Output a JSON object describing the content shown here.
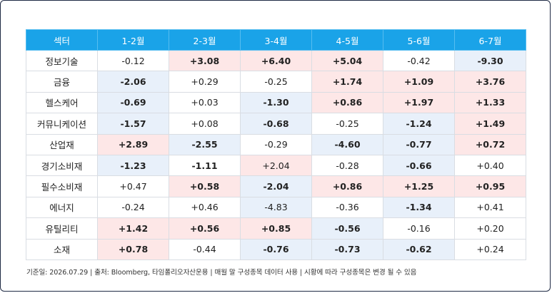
{
  "table": {
    "header": [
      "섹터",
      "1-2월",
      "2-3월",
      "3-4월",
      "4-5월",
      "5-6월",
      "6-7월"
    ],
    "rows": [
      {
        "sector": "정보기술",
        "cells": [
          {
            "v": "-0.12",
            "bold": false,
            "tone": "none"
          },
          {
            "v": "+3.08",
            "bold": true,
            "tone": "pos"
          },
          {
            "v": "+6.40",
            "bold": true,
            "tone": "pos"
          },
          {
            "v": "+5.04",
            "bold": true,
            "tone": "pos"
          },
          {
            "v": "-0.42",
            "bold": false,
            "tone": "none"
          },
          {
            "v": "-9.30",
            "bold": true,
            "tone": "neg"
          }
        ]
      },
      {
        "sector": "금융",
        "cells": [
          {
            "v": "-2.06",
            "bold": true,
            "tone": "neg"
          },
          {
            "v": "+0.29",
            "bold": false,
            "tone": "none"
          },
          {
            "v": "-0.25",
            "bold": false,
            "tone": "none"
          },
          {
            "v": "+1.74",
            "bold": true,
            "tone": "pos"
          },
          {
            "v": "+1.09",
            "bold": true,
            "tone": "pos"
          },
          {
            "v": "+3.76",
            "bold": true,
            "tone": "pos"
          }
        ]
      },
      {
        "sector": "헬스케어",
        "cells": [
          {
            "v": "-0.69",
            "bold": true,
            "tone": "neg"
          },
          {
            "v": "+0.03",
            "bold": false,
            "tone": "none"
          },
          {
            "v": "-1.30",
            "bold": true,
            "tone": "neg"
          },
          {
            "v": "+0.86",
            "bold": true,
            "tone": "pos"
          },
          {
            "v": "+1.97",
            "bold": true,
            "tone": "pos"
          },
          {
            "v": "+1.33",
            "bold": true,
            "tone": "pos"
          }
        ]
      },
      {
        "sector": "커뮤니케이션",
        "cells": [
          {
            "v": "-1.57",
            "bold": true,
            "tone": "neg"
          },
          {
            "v": "+0.08",
            "bold": false,
            "tone": "none"
          },
          {
            "v": "-0.68",
            "bold": true,
            "tone": "neg"
          },
          {
            "v": "-0.25",
            "bold": false,
            "tone": "none"
          },
          {
            "v": "-1.24",
            "bold": true,
            "tone": "neg"
          },
          {
            "v": "+1.49",
            "bold": true,
            "tone": "pos"
          }
        ]
      },
      {
        "sector": "산업재",
        "cells": [
          {
            "v": "+2.89",
            "bold": true,
            "tone": "pos"
          },
          {
            "v": "-2.55",
            "bold": true,
            "tone": "neg"
          },
          {
            "v": "-0.29",
            "bold": false,
            "tone": "none"
          },
          {
            "v": "-4.60",
            "bold": true,
            "tone": "neg"
          },
          {
            "v": "-0.77",
            "bold": true,
            "tone": "neg"
          },
          {
            "v": "+0.72",
            "bold": true,
            "tone": "pos"
          }
        ]
      },
      {
        "sector": "경기소비재",
        "cells": [
          {
            "v": "-1.23",
            "bold": true,
            "tone": "neg"
          },
          {
            "v": "-1.11",
            "bold": true,
            "tone": "none"
          },
          {
            "v": "+2.04",
            "bold": false,
            "tone": "pos"
          },
          {
            "v": "-0.28",
            "bold": false,
            "tone": "none"
          },
          {
            "v": "-0.66",
            "bold": true,
            "tone": "neg"
          },
          {
            "v": "+0.40",
            "bold": false,
            "tone": "none"
          }
        ]
      },
      {
        "sector": "필수소비재",
        "cells": [
          {
            "v": "+0.47",
            "bold": false,
            "tone": "none"
          },
          {
            "v": "+0.58",
            "bold": true,
            "tone": "pos"
          },
          {
            "v": "-2.04",
            "bold": true,
            "tone": "neg"
          },
          {
            "v": "+0.86",
            "bold": true,
            "tone": "pos"
          },
          {
            "v": "+1.25",
            "bold": true,
            "tone": "pos"
          },
          {
            "v": "+0.95",
            "bold": true,
            "tone": "pos"
          }
        ]
      },
      {
        "sector": "에너지",
        "cells": [
          {
            "v": "-0.24",
            "bold": false,
            "tone": "none"
          },
          {
            "v": "+0.46",
            "bold": false,
            "tone": "none"
          },
          {
            "v": "-4.83",
            "bold": false,
            "tone": "neg"
          },
          {
            "v": "-0.36",
            "bold": false,
            "tone": "none"
          },
          {
            "v": "-1.34",
            "bold": true,
            "tone": "neg"
          },
          {
            "v": "+0.41",
            "bold": false,
            "tone": "none"
          }
        ]
      },
      {
        "sector": "유틸리티",
        "cells": [
          {
            "v": "+1.42",
            "bold": true,
            "tone": "pos"
          },
          {
            "v": "+0.56",
            "bold": true,
            "tone": "pos"
          },
          {
            "v": "+0.85",
            "bold": true,
            "tone": "pos"
          },
          {
            "v": "-0.56",
            "bold": true,
            "tone": "neg"
          },
          {
            "v": "-0.16",
            "bold": false,
            "tone": "none"
          },
          {
            "v": "+0.20",
            "bold": false,
            "tone": "none"
          }
        ]
      },
      {
        "sector": "소재",
        "cells": [
          {
            "v": "+0.78",
            "bold": true,
            "tone": "pos"
          },
          {
            "v": "-0.44",
            "bold": false,
            "tone": "none"
          },
          {
            "v": "-0.76",
            "bold": true,
            "tone": "neg"
          },
          {
            "v": "-0.73",
            "bold": true,
            "tone": "neg"
          },
          {
            "v": "-0.62",
            "bold": true,
            "tone": "neg"
          },
          {
            "v": "+0.24",
            "bold": false,
            "tone": "none"
          }
        ]
      }
    ]
  },
  "footer": "기준일: 2026.07.29 | 출처: Bloomberg, 타임폴리오자산운용 | 매월 말 구성종목 데이터 사용  |  시황에 따라  구성종목은 변경 될 수 있음",
  "colors": {
    "header_bg": "#1aa3e8",
    "pos_bg": "#fde7e7",
    "neg_bg": "#e8f0fa"
  }
}
